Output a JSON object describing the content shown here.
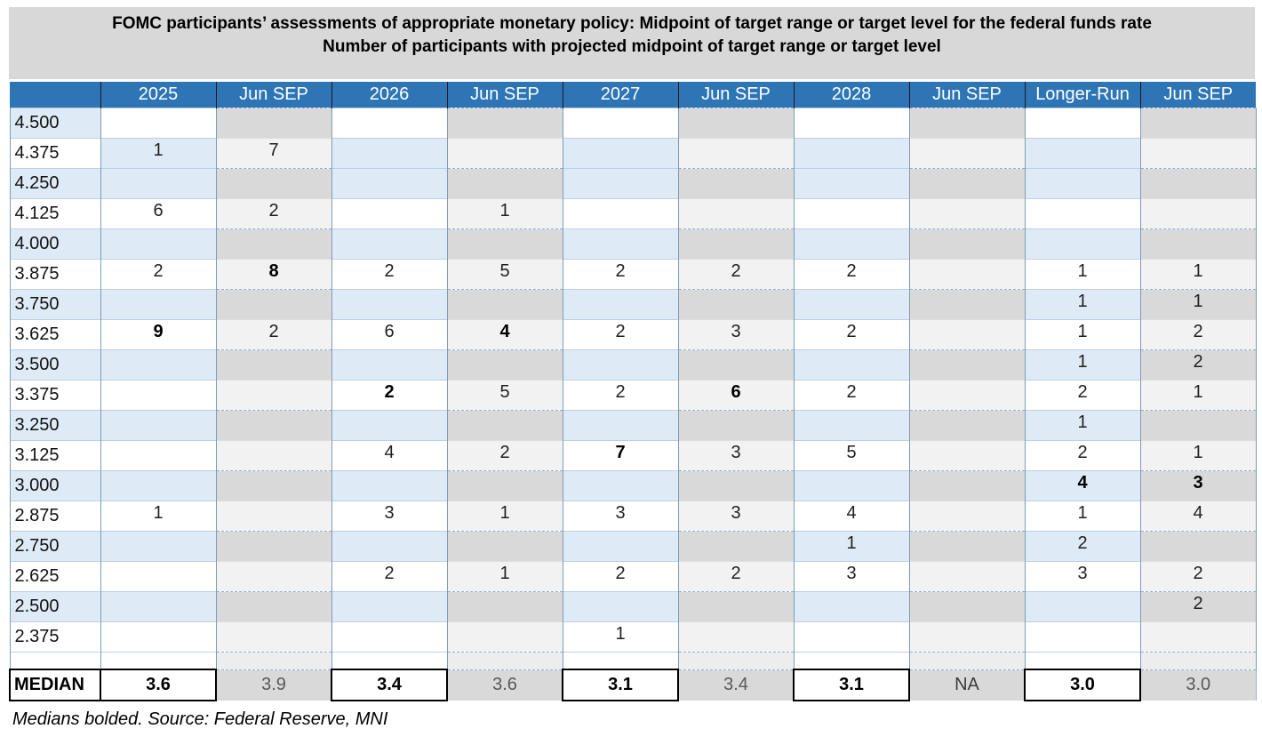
{
  "title": {
    "line1": "FOMC participants’ assessments of appropriate monetary policy: Midpoint of target range or target level for the federal funds rate",
    "line2": "Number of participants with projected midpoint of target range or target level"
  },
  "table": {
    "header": [
      "",
      "2025",
      "Jun SEP",
      "2026",
      "Jun SEP",
      "2027",
      "Jun SEP",
      "2028",
      "Jun SEP",
      "Longer-Run",
      "Jun SEP"
    ],
    "rows": [
      {
        "label": "4.500",
        "cells": [
          "",
          "",
          "",
          "",
          "",
          "",
          "",
          "",
          "",
          ""
        ]
      },
      {
        "label": "4.375",
        "cells": [
          "1",
          "7",
          "",
          "",
          "",
          "",
          "",
          "",
          "",
          ""
        ]
      },
      {
        "label": "4.250",
        "cells": [
          "",
          "",
          "",
          "",
          "",
          "",
          "",
          "",
          "",
          ""
        ]
      },
      {
        "label": "4.125",
        "cells": [
          "6",
          "2",
          "",
          "1",
          "",
          "",
          "",
          "",
          "",
          ""
        ]
      },
      {
        "label": "4.000",
        "cells": [
          "",
          "",
          "",
          "",
          "",
          "",
          "",
          "",
          "",
          ""
        ]
      },
      {
        "label": "3.875",
        "cells": [
          "2",
          {
            "v": "8",
            "b": true
          },
          "2",
          "5",
          "2",
          "2",
          "2",
          "",
          "1",
          "1"
        ]
      },
      {
        "label": "3.750",
        "cells": [
          "",
          "",
          "",
          "",
          "",
          "",
          "",
          "",
          "1",
          "1"
        ]
      },
      {
        "label": "3.625",
        "cells": [
          {
            "v": "9",
            "b": true
          },
          "2",
          "6",
          {
            "v": "4",
            "b": true
          },
          "2",
          "3",
          "2",
          "",
          "1",
          "2"
        ]
      },
      {
        "label": "3.500",
        "cells": [
          "",
          "",
          "",
          "",
          "",
          "",
          "",
          "",
          "1",
          "2"
        ]
      },
      {
        "label": "3.375",
        "cells": [
          "",
          "",
          {
            "v": "2",
            "b": true
          },
          "5",
          "2",
          {
            "v": "6",
            "b": true
          },
          "2",
          "",
          "2",
          "1"
        ]
      },
      {
        "label": "3.250",
        "cells": [
          "",
          "",
          "",
          "",
          "",
          "",
          "",
          "",
          "1",
          ""
        ]
      },
      {
        "label": "3.125",
        "cells": [
          "",
          "",
          "4",
          "2",
          {
            "v": "7",
            "b": true
          },
          "3",
          "5",
          "",
          "2",
          "1"
        ]
      },
      {
        "label": "3.000",
        "cells": [
          "",
          "",
          "",
          "",
          "",
          "",
          "",
          "",
          {
            "v": "4",
            "b": true
          },
          {
            "v": "3",
            "b": true
          }
        ]
      },
      {
        "label": "2.875",
        "cells": [
          "1",
          "",
          "3",
          "1",
          "3",
          "3",
          "4",
          "",
          "1",
          "4"
        ]
      },
      {
        "label": "2.750",
        "cells": [
          "",
          "",
          "",
          "",
          "",
          "",
          "1",
          "",
          "2",
          ""
        ]
      },
      {
        "label": "2.625",
        "cells": [
          "",
          "",
          "2",
          "1",
          "2",
          "2",
          "3",
          "",
          "3",
          "2"
        ]
      },
      {
        "label": "2.500",
        "cells": [
          "",
          "",
          "",
          "",
          "",
          "",
          "",
          "",
          "",
          "2"
        ]
      },
      {
        "label": "2.375",
        "cells": [
          "",
          "",
          "",
          "",
          "1",
          "",
          "",
          "",
          "",
          ""
        ]
      }
    ],
    "median": {
      "label": "MEDIAN",
      "cells": [
        "3.6",
        "3.9",
        "3.4",
        "3.6",
        "3.1",
        "3.4",
        "3.1",
        "NA",
        "3.0",
        "3.0"
      ]
    }
  },
  "footnote": "Medians bolded. Source: Federal Reserve, MNI",
  "colors": {
    "header_bg": "#2E75B6",
    "header_text": "#FFFFFF",
    "band_blue": "#DEEBF7",
    "band_white": "#FFFFFF",
    "jun_band_dark": "#D9D9D9",
    "jun_band_light": "#F2F2F2",
    "title_band_bg": "#D8D8D8",
    "grid_border": "#7F9BB5",
    "dash_rule": "#8FAFD2",
    "median_border": "#000000",
    "median_muted_text": "#595959"
  }
}
